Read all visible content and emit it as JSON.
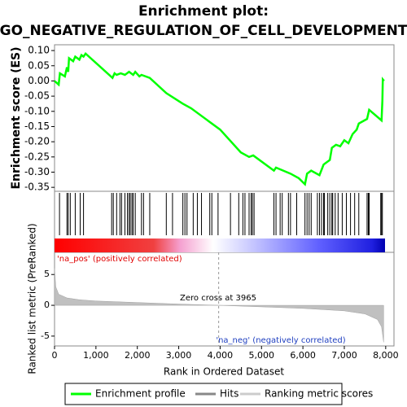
{
  "chart_data": [
    {
      "type": "line",
      "title": "Enrichment plot:",
      "subtitle": "GO_NEGATIVE_REGULATION_OF_CELL_DEVELOPMENT",
      "y_label": "Enrichment score (ES)",
      "color": "#00ff00",
      "x": [
        0,
        100,
        130,
        250,
        300,
        330,
        350,
        450,
        500,
        600,
        650,
        700,
        750,
        1400,
        1450,
        1500,
        1600,
        1700,
        1800,
        1900,
        1950,
        2050,
        2100,
        2300,
        2700,
        3100,
        3300,
        4000,
        4500,
        4700,
        4800,
        5300,
        5350,
        5700,
        5900,
        6050,
        6100,
        6200,
        6400,
        6500,
        6650,
        6700,
        6800,
        6900,
        7000,
        7100,
        7200,
        7300,
        7350,
        7550,
        7600,
        7900,
        7920,
        7930,
        7960
      ],
      "values": [
        0,
        -0.012,
        0.025,
        0.015,
        0.045,
        0.03,
        0.075,
        0.065,
        0.08,
        0.07,
        0.085,
        0.08,
        0.09,
        0.01,
        0.025,
        0.02,
        0.025,
        0.02,
        0.03,
        0.02,
        0.03,
        0.015,
        0.02,
        0.01,
        -0.04,
        -0.075,
        -0.09,
        -0.16,
        -0.235,
        -0.25,
        -0.245,
        -0.295,
        -0.285,
        -0.305,
        -0.32,
        -0.34,
        -0.305,
        -0.295,
        -0.31,
        -0.275,
        -0.26,
        -0.22,
        -0.21,
        -0.215,
        -0.195,
        -0.205,
        -0.175,
        -0.16,
        -0.14,
        -0.125,
        -0.095,
        -0.13,
        -0.065,
        0.005,
        0
      ],
      "xlim": [
        0,
        8200
      ],
      "ylim": [
        -0.363,
        0.119
      ],
      "yticks": [
        {
          "value": 0.1,
          "label": "0.10"
        },
        0.05,
        {
          "value": 0,
          "label": "0.00"
        },
        -0.05,
        {
          "value": -0.1,
          "label": "-0.10"
        },
        -0.15,
        {
          "value": -0.2,
          "label": "-0.20"
        },
        -0.25,
        {
          "value": -0.3,
          "label": "-0.30"
        },
        -0.35
      ]
    },
    {
      "type": "barcode",
      "name": "Hits",
      "color": "#000000",
      "xlim": [
        0,
        8200
      ],
      "x": [
        120,
        300,
        330,
        380,
        500,
        620,
        700,
        1380,
        1420,
        1500,
        1580,
        1620,
        1700,
        1760,
        1800,
        1830,
        1870,
        1900,
        1950,
        2100,
        2150,
        2300,
        2700,
        2850,
        3100,
        3150,
        3200,
        3350,
        3450,
        3550,
        3750,
        3800,
        3950,
        4250,
        4450,
        4550,
        4600,
        4700,
        4750,
        4780,
        4820,
        5300,
        5350,
        5450,
        5500,
        5650,
        5700,
        5850,
        6050,
        6100,
        6150,
        6200,
        6350,
        6400,
        6450,
        6500,
        6520,
        6600,
        6650,
        6700,
        6720,
        6780,
        6850,
        6950,
        7050,
        7150,
        7250,
        7350,
        7550,
        7580,
        7600,
        7880,
        7900,
        7920
      ]
    },
    {
      "type": "area",
      "y_label": "Ranked list metric (PreRanked)",
      "x_label": "Rank in Ordered Dataset",
      "color": "#c0c0c0",
      "x": [
        0,
        30,
        100,
        300,
        600,
        1000,
        2000,
        3000,
        3965,
        5000,
        6000,
        7000,
        7500,
        7800,
        7900,
        7950
      ],
      "values": [
        6,
        3,
        1.8,
        1.2,
        0.9,
        0.7,
        0.45,
        0.2,
        0,
        -0.25,
        -0.5,
        -0.9,
        -1.4,
        -2.3,
        -3.5,
        -6
      ],
      "xlim": [
        0,
        8200
      ],
      "ylim": [
        -6.6,
        8.6
      ],
      "yticks": [
        -5,
        0,
        5
      ],
      "xticks": [
        0,
        {
          "value": 1000,
          "label": "1,000"
        },
        {
          "value": 2000,
          "label": "2,000"
        },
        {
          "value": 3000,
          "label": "3,000"
        },
        {
          "value": 4000,
          "label": "4,000"
        },
        {
          "value": 5000,
          "label": "5,000"
        },
        {
          "value": 6000,
          "label": "6,000"
        },
        {
          "value": 7000,
          "label": "7,000"
        },
        {
          "value": 8000,
          "label": "8,000"
        }
      ],
      "zero_cross": 3965,
      "annotations": [
        "'na_pos' (positively correlated)",
        "Zero cross at 3965",
        "'na_neg' (negatively correlated)"
      ]
    }
  ],
  "legend": [
    "Enrichment profile",
    "Hits",
    "Ranking metric scores"
  ]
}
